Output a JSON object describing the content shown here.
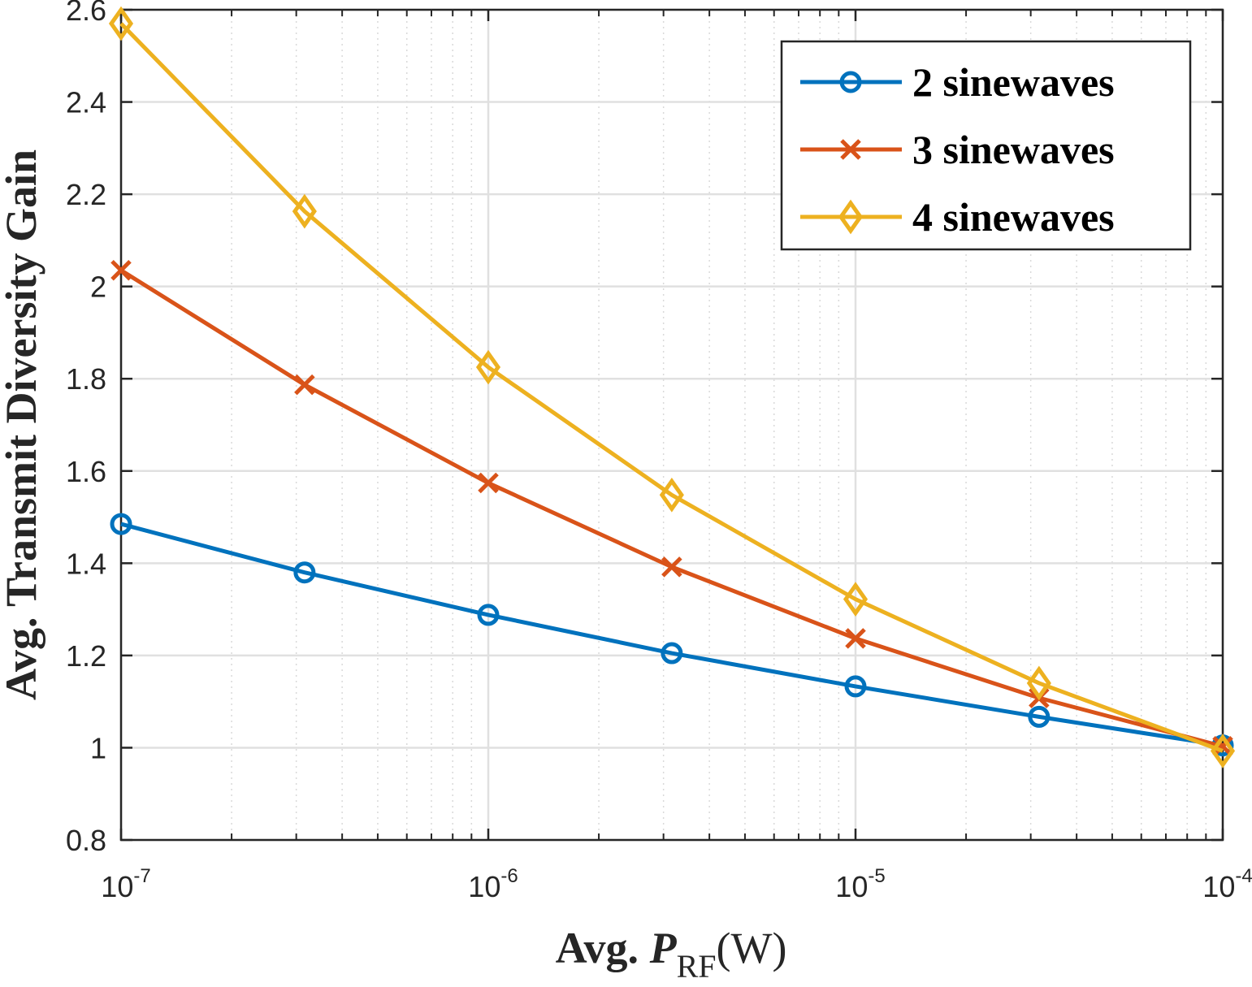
{
  "chart_data": {
    "type": "line",
    "xscale": "log",
    "xlim": [
      1e-07,
      0.0001
    ],
    "ylim": [
      0.8,
      2.6
    ],
    "grid": true,
    "minor_grid": true,
    "legend_position": "top-right",
    "xlabel": {
      "prefix": "Avg. ",
      "symbol": "P",
      "subscript": "RF",
      "suffix": "(W)"
    },
    "ylabel": "Avg. Transmit Diversity Gain",
    "x_ticks": [
      {
        "value": 1e-07,
        "base": "10",
        "exp": "-7"
      },
      {
        "value": 1e-06,
        "base": "10",
        "exp": "-6"
      },
      {
        "value": 1e-05,
        "base": "10",
        "exp": "-5"
      },
      {
        "value": 0.0001,
        "base": "10",
        "exp": "-4"
      }
    ],
    "y_ticks": [
      {
        "value": 0.8,
        "label": "0.8"
      },
      {
        "value": 1.0,
        "label": "1"
      },
      {
        "value": 1.2,
        "label": "1.2"
      },
      {
        "value": 1.4,
        "label": "1.4"
      },
      {
        "value": 1.6,
        "label": "1.6"
      },
      {
        "value": 1.8,
        "label": "1.8"
      },
      {
        "value": 2.0,
        "label": "2"
      },
      {
        "value": 2.2,
        "label": "2.2"
      },
      {
        "value": 2.4,
        "label": "2.4"
      },
      {
        "value": 2.6,
        "label": "2.6"
      }
    ],
    "x": [
      1e-07,
      3.16e-07,
      1e-06,
      3.16e-06,
      1e-05,
      3.16e-05,
      0.0001
    ],
    "series": [
      {
        "name": "2 sinewaves",
        "color": "#0072BD",
        "marker": "circle",
        "values": [
          1.485,
          1.38,
          1.288,
          1.205,
          1.133,
          1.067,
          1.005
        ]
      },
      {
        "name": "3 sinewaves",
        "color": "#D95319",
        "marker": "x",
        "values": [
          2.035,
          1.787,
          1.574,
          1.392,
          1.237,
          1.108,
          1.003
        ]
      },
      {
        "name": "4 sinewaves",
        "color": "#EDB120",
        "marker": "diamond",
        "values": [
          2.57,
          2.163,
          1.825,
          1.548,
          1.322,
          1.14,
          0.993
        ]
      }
    ]
  }
}
